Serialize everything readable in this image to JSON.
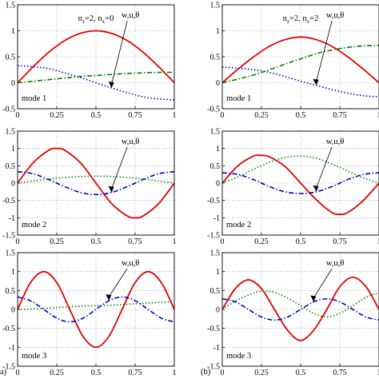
{
  "figure": {
    "panel_labels": [
      "a)",
      "(b)"
    ],
    "params": [
      {
        "nz_label": "n",
        "nz_sub": "z",
        "nz_value": "=2, ",
        "nx_label": "n",
        "nx_sub": "x",
        "nx_value": "=0"
      },
      {
        "nz_label": "n",
        "nz_sub": "z",
        "nz_value": "=2, ",
        "nx_label": "n",
        "nx_sub": "x",
        "nx_value": "=2"
      }
    ],
    "colors": {
      "w": "#e00000",
      "u": "#0000cc",
      "theta": "#008000",
      "axis": "#000000",
      "grid": "#888888"
    }
  },
  "chart_data": [
    {
      "type": "line",
      "panel": "(a)",
      "label": "mode 1",
      "annotation": "w,u,θ",
      "xlim": [
        0,
        1
      ],
      "ylim": [
        -0.5,
        1.5
      ],
      "xticks": [
        "0",
        "0.25",
        "0.5",
        "0.75",
        "1"
      ],
      "yticks": [
        "-0.5",
        "0",
        "0.5",
        "1",
        "1.5"
      ],
      "grid": true,
      "x": [
        0,
        0.1,
        0.2,
        0.3,
        0.4,
        0.5,
        0.6,
        0.7,
        0.8,
        0.9,
        1.0
      ],
      "series": [
        {
          "key": "w",
          "style": "solid",
          "values": [
            0.0,
            0.31,
            0.59,
            0.81,
            0.95,
            1.0,
            0.95,
            0.81,
            0.59,
            0.31,
            0.0
          ]
        },
        {
          "key": "u",
          "style": "dotted",
          "values": [
            0.33,
            0.31,
            0.27,
            0.19,
            0.1,
            0.0,
            -0.1,
            -0.19,
            -0.27,
            -0.31,
            -0.33
          ]
        },
        {
          "key": "theta",
          "style": "dashdot",
          "values": [
            0.0,
            0.03,
            0.06,
            0.09,
            0.12,
            0.14,
            0.16,
            0.18,
            0.19,
            0.2,
            0.2
          ]
        }
      ]
    },
    {
      "type": "line",
      "panel": "(a)",
      "label": "mode 2",
      "annotation": "w,u,θ",
      "xlim": [
        0,
        1
      ],
      "ylim": [
        -1.5,
        1.5
      ],
      "xticks": [
        "0",
        "0.25",
        "0.5",
        "0.75",
        "1"
      ],
      "yticks": [
        "-1.5",
        "-1",
        "-0.5",
        "0",
        "0.5",
        "1",
        "1.5"
      ],
      "grid": true,
      "x": [
        0,
        0.1,
        0.2,
        0.25,
        0.3,
        0.4,
        0.5,
        0.6,
        0.7,
        0.75,
        0.8,
        0.9,
        1.0
      ],
      "series": [
        {
          "key": "w",
          "style": "solid",
          "values": [
            0.0,
            0.59,
            0.95,
            1.0,
            0.95,
            0.59,
            0.0,
            -0.59,
            -0.95,
            -1.0,
            -0.95,
            -0.59,
            0.0
          ]
        },
        {
          "key": "u",
          "style": "dashdot",
          "values": [
            0.33,
            0.27,
            0.1,
            0.0,
            -0.1,
            -0.27,
            -0.33,
            -0.27,
            -0.1,
            0.0,
            0.1,
            0.27,
            0.33
          ]
        },
        {
          "key": "theta",
          "style": "dotted",
          "values": [
            0.0,
            0.06,
            0.12,
            0.14,
            0.16,
            0.19,
            0.2,
            0.19,
            0.16,
            0.14,
            0.12,
            0.06,
            0.0
          ]
        }
      ]
    },
    {
      "type": "line",
      "panel": "(a)",
      "label": "mode 3",
      "annotation": "w,u,θ",
      "xlim": [
        0,
        1
      ],
      "ylim": [
        -1.5,
        1.5
      ],
      "xticks": [
        "0",
        "0.25",
        "0.5",
        "0.75",
        "1"
      ],
      "yticks": [
        "-1.5",
        "-1",
        "-0.5",
        "0",
        "0.5",
        "1",
        "1.5"
      ],
      "grid": true,
      "x": [
        0,
        0.083,
        0.167,
        0.25,
        0.333,
        0.417,
        0.5,
        0.583,
        0.667,
        0.75,
        0.833,
        0.917,
        1.0
      ],
      "series": [
        {
          "key": "w",
          "style": "solid",
          "values": [
            0.0,
            0.71,
            1.0,
            0.71,
            0.0,
            -0.71,
            -1.0,
            -0.71,
            0.0,
            0.71,
            1.0,
            0.71,
            0.0
          ]
        },
        {
          "key": "u",
          "style": "dashdot",
          "values": [
            0.33,
            0.23,
            0.0,
            -0.23,
            -0.33,
            -0.23,
            0.0,
            0.23,
            0.33,
            0.23,
            0.0,
            -0.23,
            -0.33
          ]
        },
        {
          "key": "theta",
          "style": "dotted",
          "values": [
            0.0,
            0.01,
            0.03,
            0.05,
            0.07,
            0.09,
            0.1,
            0.11,
            0.13,
            0.15,
            0.17,
            0.19,
            0.2
          ]
        }
      ]
    },
    {
      "type": "line",
      "panel": "(b)",
      "label": "mode 1",
      "annotation": "w,u,θ",
      "xlim": [
        0,
        1
      ],
      "ylim": [
        -0.5,
        1.5
      ],
      "xticks": [
        "0",
        "0.25",
        "0.5",
        "0.75",
        "1"
      ],
      "yticks": [
        "-0.5",
        "0",
        "0.5",
        "1",
        "1.5"
      ],
      "grid": true,
      "x": [
        0,
        0.1,
        0.2,
        0.3,
        0.4,
        0.5,
        0.6,
        0.7,
        0.8,
        0.9,
        1.0
      ],
      "series": [
        {
          "key": "w",
          "style": "solid",
          "values": [
            0.0,
            0.26,
            0.5,
            0.7,
            0.83,
            0.88,
            0.83,
            0.7,
            0.5,
            0.26,
            0.0
          ]
        },
        {
          "key": "u",
          "style": "dotted",
          "values": [
            0.3,
            0.28,
            0.25,
            0.2,
            0.12,
            0.03,
            -0.05,
            -0.13,
            -0.2,
            -0.25,
            -0.27
          ]
        },
        {
          "key": "theta",
          "style": "dashdot",
          "values": [
            0.0,
            0.07,
            0.15,
            0.25,
            0.36,
            0.46,
            0.56,
            0.63,
            0.68,
            0.71,
            0.72
          ]
        }
      ]
    },
    {
      "type": "line",
      "panel": "(b)",
      "label": "mode 2",
      "annotation": "w,u,θ",
      "xlim": [
        0,
        1
      ],
      "ylim": [
        -1.5,
        1.5
      ],
      "xticks": [
        "0",
        "0.25",
        "0.5",
        "0.75",
        "1"
      ],
      "yticks": [
        "-1.5",
        "-1",
        "-0.5",
        "0",
        "0.5",
        "1",
        "1.5"
      ],
      "grid": true,
      "x": [
        0,
        0.1,
        0.2,
        0.25,
        0.3,
        0.4,
        0.5,
        0.6,
        0.7,
        0.75,
        0.8,
        0.9,
        1.0
      ],
      "series": [
        {
          "key": "w",
          "style": "solid",
          "values": [
            0.0,
            0.5,
            0.78,
            0.8,
            0.76,
            0.48,
            0.0,
            -0.48,
            -0.85,
            -0.9,
            -0.85,
            -0.5,
            0.0
          ]
        },
        {
          "key": "u",
          "style": "dashdot",
          "values": [
            0.3,
            0.25,
            0.1,
            0.0,
            -0.1,
            -0.25,
            -0.3,
            -0.25,
            -0.1,
            0.0,
            0.1,
            0.25,
            0.3
          ]
        },
        {
          "key": "theta",
          "style": "dotted",
          "values": [
            0.0,
            0.18,
            0.4,
            0.5,
            0.6,
            0.74,
            0.78,
            0.72,
            0.55,
            0.45,
            0.35,
            0.15,
            0.0
          ]
        }
      ]
    },
    {
      "type": "line",
      "panel": "(b)",
      "label": "mode 3",
      "annotation": "w,u,θ",
      "xlim": [
        0,
        1
      ],
      "ylim": [
        -1.5,
        1.5
      ],
      "xticks": [
        "0",
        "0.25",
        "0.5",
        "0.75",
        "1"
      ],
      "yticks": [
        "-1.5",
        "-1",
        "-0.5",
        "0",
        "0.5",
        "1",
        "1.5"
      ],
      "grid": true,
      "x": [
        0,
        0.083,
        0.167,
        0.25,
        0.333,
        0.417,
        0.5,
        0.583,
        0.667,
        0.75,
        0.833,
        0.917,
        1.0
      ],
      "series": [
        {
          "key": "w",
          "style": "solid",
          "values": [
            0.0,
            0.55,
            0.78,
            0.55,
            0.0,
            -0.55,
            -0.82,
            -0.55,
            0.0,
            0.6,
            0.85,
            0.6,
            0.0
          ]
        },
        {
          "key": "u",
          "style": "dashdot",
          "values": [
            0.28,
            0.2,
            0.0,
            -0.2,
            -0.28,
            -0.2,
            0.0,
            0.2,
            0.28,
            0.2,
            0.0,
            -0.2,
            -0.28
          ]
        },
        {
          "key": "theta",
          "style": "dotted",
          "values": [
            0.0,
            0.22,
            0.38,
            0.48,
            0.45,
            0.3,
            0.1,
            -0.1,
            -0.2,
            -0.1,
            0.1,
            0.32,
            0.45
          ]
        }
      ]
    }
  ]
}
